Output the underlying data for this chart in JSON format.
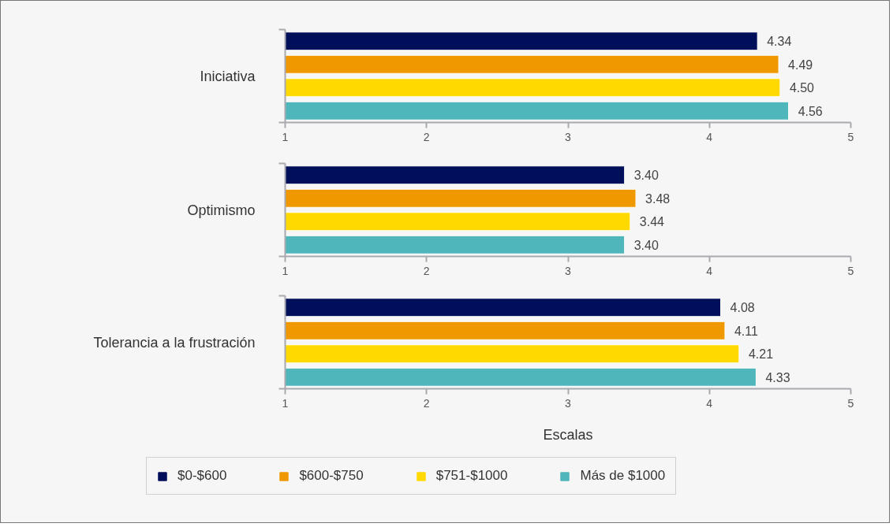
{
  "chart_data": [
    {
      "type": "bar",
      "orientation": "horizontal",
      "categories": [
        "Iniciativa"
      ],
      "xlim": [
        1,
        5
      ],
      "xticks": [
        1,
        2,
        3,
        4,
        5
      ],
      "series": [
        {
          "color": "#000f5a",
          "values": [
            4.34
          ],
          "value_labels": [
            "4.34"
          ]
        },
        {
          "color": "#f09800",
          "values": [
            4.49
          ],
          "value_labels": [
            "4.49"
          ]
        },
        {
          "color": "#ffd900",
          "values": [
            4.5
          ],
          "value_labels": [
            "4.50"
          ]
        },
        {
          "color": "#4fb6bc",
          "values": [
            4.56
          ],
          "value_labels": [
            "4.56"
          ]
        }
      ]
    },
    {
      "type": "bar",
      "orientation": "horizontal",
      "categories": [
        "Optimismo"
      ],
      "xlim": [
        1,
        5
      ],
      "xticks": [
        1,
        2,
        3,
        4,
        5
      ],
      "series": [
        {
          "color": "#000f5a",
          "values": [
            3.4
          ],
          "value_labels": [
            "3.40"
          ]
        },
        {
          "color": "#f09800",
          "values": [
            3.48
          ],
          "value_labels": [
            "3.48"
          ]
        },
        {
          "color": "#ffd900",
          "values": [
            3.44
          ],
          "value_labels": [
            "3.44"
          ]
        },
        {
          "color": "#4fb6bc",
          "values": [
            3.4
          ],
          "value_labels": [
            "3.40"
          ]
        }
      ]
    },
    {
      "type": "bar",
      "orientation": "horizontal",
      "categories": [
        "Tolerancia a la frustración"
      ],
      "xlim": [
        1,
        5
      ],
      "xticks": [
        1,
        2,
        3,
        4,
        5
      ],
      "xlabel": "Escalas",
      "legend": "bottom",
      "series": [
        {
          "name": "$0-$600",
          "color": "#000f5a",
          "values": [
            4.08
          ],
          "value_labels": [
            "4.08"
          ]
        },
        {
          "name": "$600-$750",
          "color": "#f09800",
          "values": [
            4.11
          ],
          "value_labels": [
            "4.11"
          ]
        },
        {
          "name": "$751-$1000",
          "color": "#ffd900",
          "values": [
            4.21
          ],
          "value_labels": [
            "4.21"
          ]
        },
        {
          "name": "Más de $1000",
          "color": "#4fb6bc",
          "values": [
            4.33
          ],
          "value_labels": [
            "4.33"
          ]
        }
      ]
    }
  ]
}
